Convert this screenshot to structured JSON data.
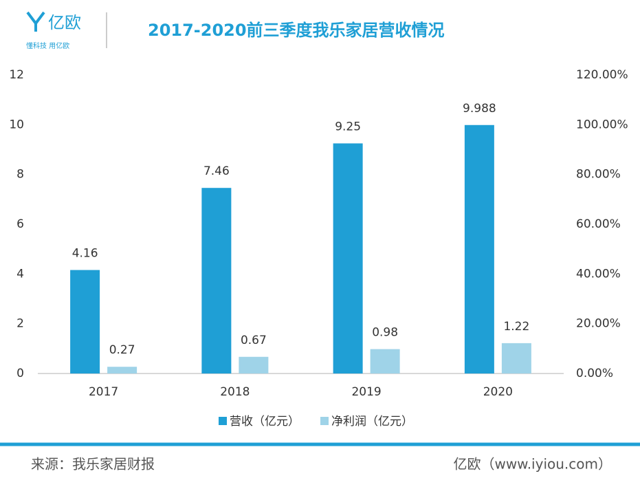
{
  "logo": {
    "name": "亿欧",
    "tagline": "懂科技 用亿欧"
  },
  "chart_data": {
    "type": "bar",
    "title": "2017-2020前三季度我乐家居营收情况",
    "categories": [
      "2017",
      "2018",
      "2019",
      "2020"
    ],
    "series": [
      {
        "name": "营收（亿元）",
        "color": "#1f9fd5",
        "values": [
          4.16,
          7.46,
          9.25,
          9.988
        ]
      },
      {
        "name": "净利润（亿元）",
        "color": "#9fd3e8",
        "values": [
          0.27,
          0.67,
          0.98,
          1.22
        ]
      }
    ],
    "ylim": [
      0,
      12
    ],
    "yticks": [
      0,
      2,
      4,
      6,
      8,
      10,
      12
    ],
    "y2lim": [
      0,
      120
    ],
    "y2ticks": [
      {
        "value": 0,
        "label": "0.00%"
      },
      {
        "value": 20,
        "label": "20.00%"
      },
      {
        "value": 40,
        "label": "40.00%"
      },
      {
        "value": 60,
        "label": "60.00%"
      },
      {
        "value": 80,
        "label": "80.00%"
      },
      {
        "value": 100,
        "label": "100.00%"
      },
      {
        "value": 120,
        "label": "120.00%"
      }
    ],
    "grid": false,
    "legend": "bottom"
  },
  "footer": {
    "source": "来源：我乐家居财报",
    "credit": "亿欧（www.iyiou.com）"
  }
}
